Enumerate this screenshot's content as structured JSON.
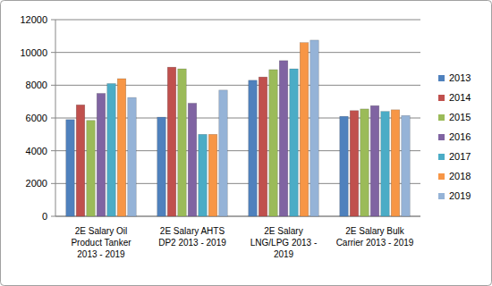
{
  "chart_data": {
    "type": "bar",
    "categories": [
      "2E Salary Oil Product Tanker 2013 - 2019",
      "2E Salary AHTS DP2 2013 - 2019",
      "2E Salary LNG/LPG 2013 - 2019",
      "2E Salary Bulk Carrier 2013 - 2019"
    ],
    "series": [
      {
        "name": "2013",
        "color": "#4f81bd",
        "values": [
          5900,
          6050,
          8300,
          6100
        ]
      },
      {
        "name": "2014",
        "color": "#c0504d",
        "values": [
          6800,
          9100,
          8500,
          6450
        ]
      },
      {
        "name": "2015",
        "color": "#9bbb59",
        "values": [
          5850,
          9000,
          8950,
          6550
        ]
      },
      {
        "name": "2016",
        "color": "#8064a2",
        "values": [
          7500,
          6900,
          9500,
          6750
        ]
      },
      {
        "name": "2017",
        "color": "#4bacc6",
        "values": [
          8100,
          5000,
          9000,
          6400
        ]
      },
      {
        "name": "2018",
        "color": "#f79646",
        "values": [
          8400,
          5000,
          10600,
          6500
        ]
      },
      {
        "name": "2019",
        "color": "#95b3d7",
        "values": [
          7250,
          7700,
          10750,
          6150
        ]
      }
    ],
    "ylim": [
      0,
      12000
    ],
    "yticks": [
      0,
      2000,
      4000,
      6000,
      8000,
      10000,
      12000
    ],
    "grid": true,
    "legend": "right"
  }
}
